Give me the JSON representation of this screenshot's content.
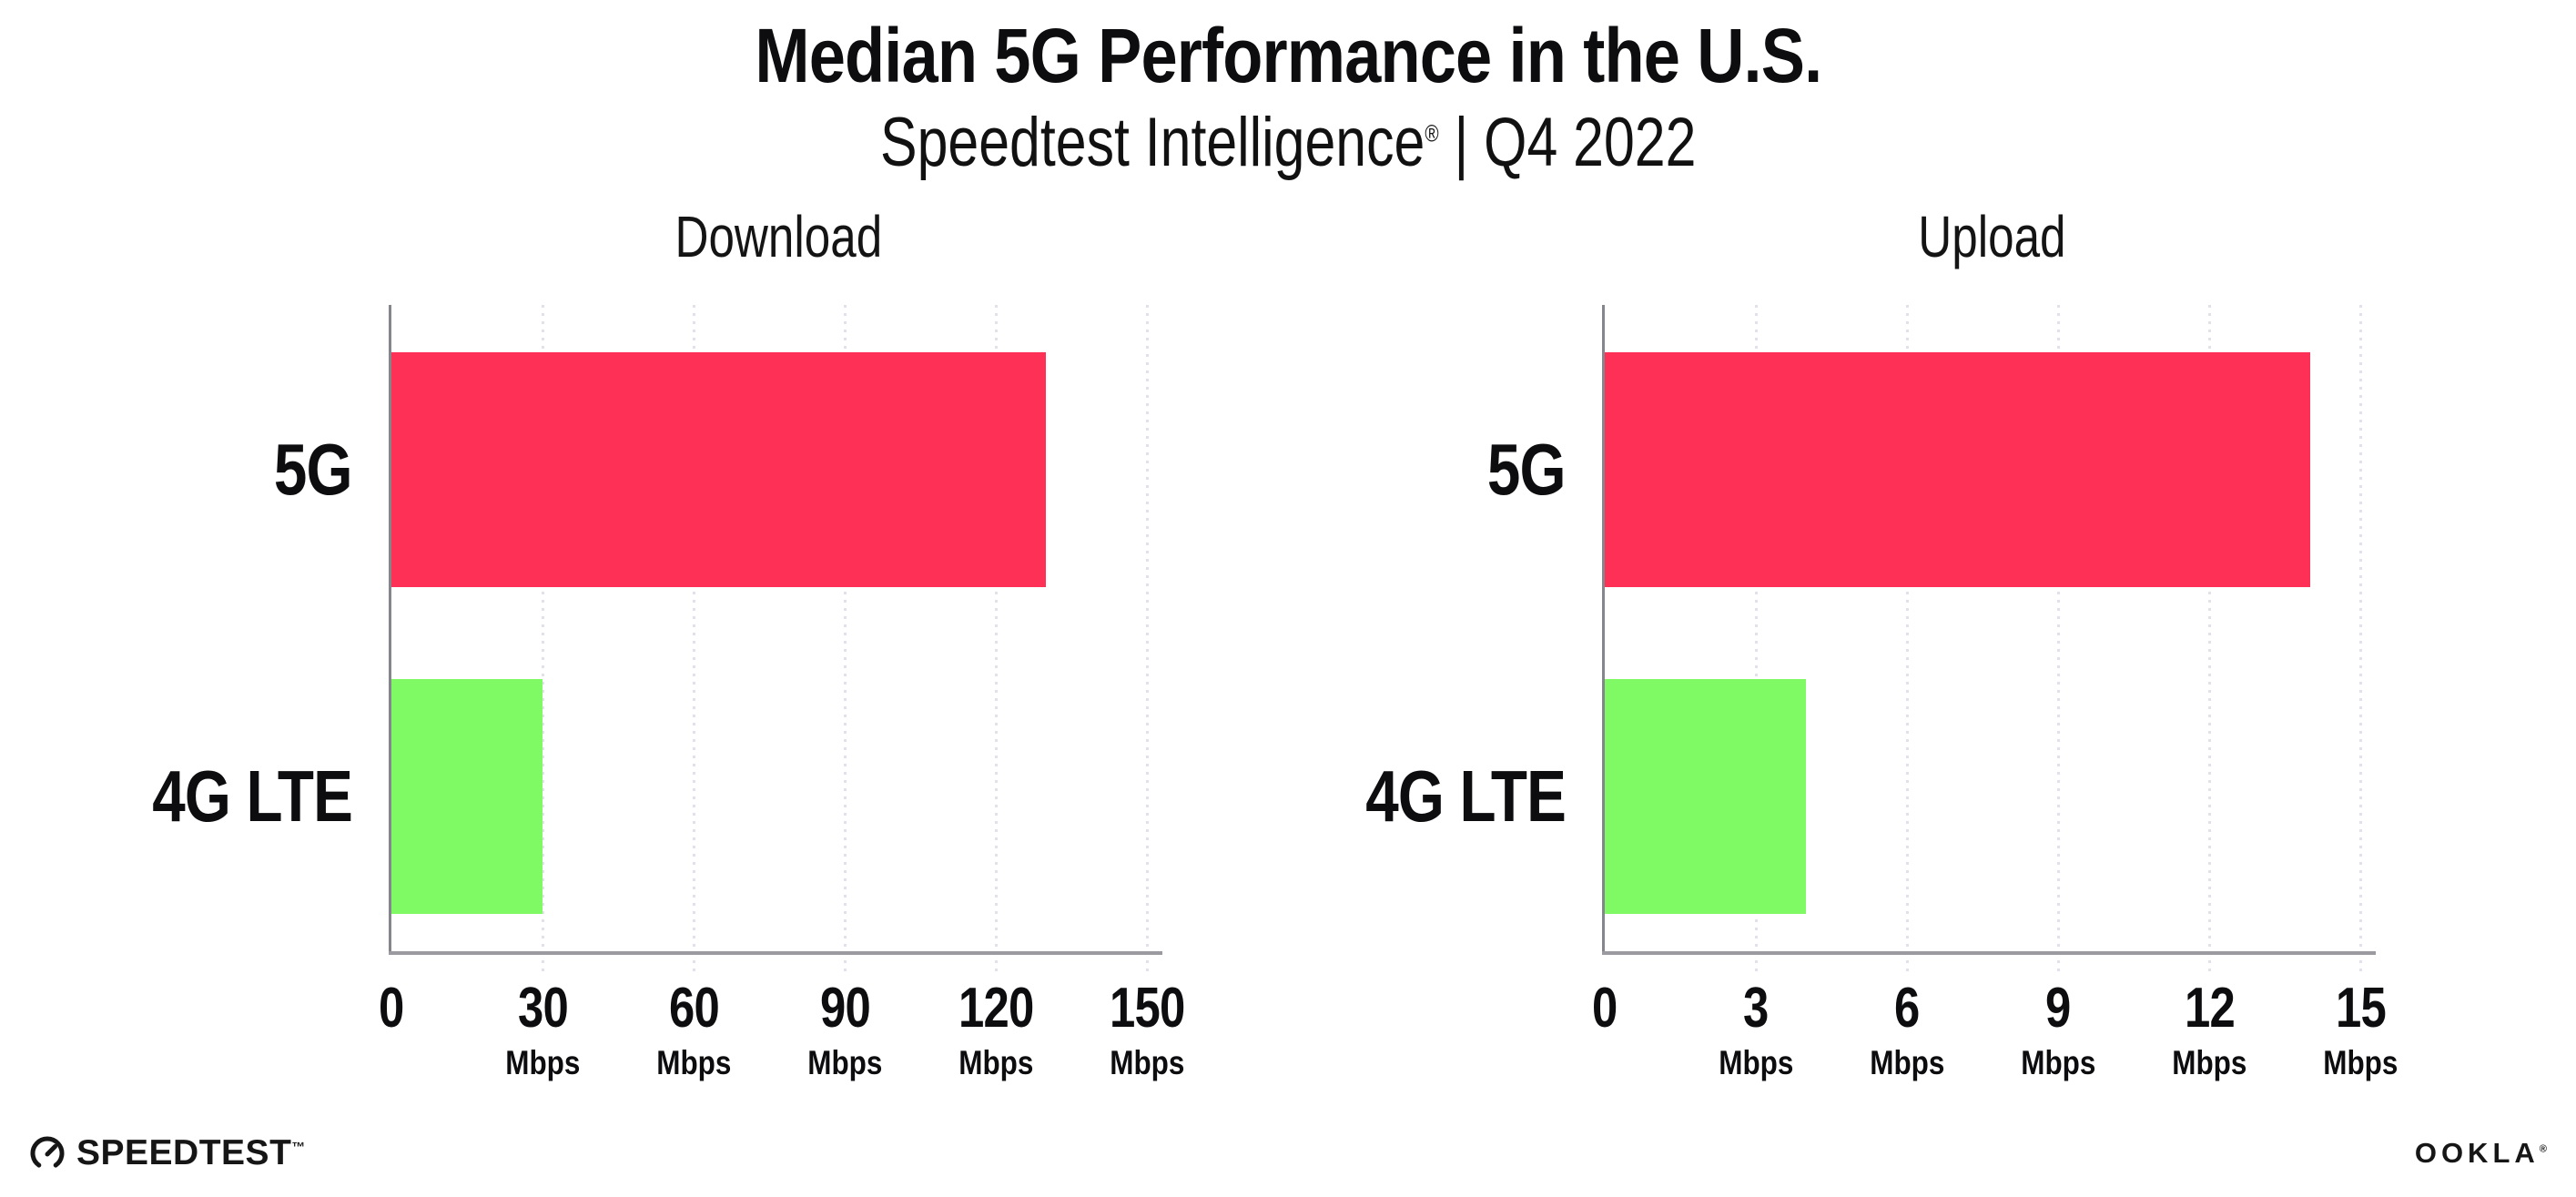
{
  "header": {
    "title": "Median 5G Performance in the U.S.",
    "subtitle": {
      "brand": "Speedtest Intelligence",
      "registered": "®",
      "separator": " | ",
      "period": "Q4 2022"
    }
  },
  "chart_data": [
    {
      "type": "bar",
      "title": "Download",
      "orientation": "horizontal",
      "categories": [
        "5G",
        "4G LTE"
      ],
      "values": [
        130,
        30
      ],
      "unit": "Mbps",
      "xticks": [
        0,
        30,
        60,
        90,
        120,
        150
      ],
      "xlim": [
        0,
        154
      ],
      "bar_colors": [
        "#FF3056",
        "#7FFA64"
      ],
      "gridlines": "dotted-vertical",
      "legend": "none"
    },
    {
      "type": "bar",
      "title": "Upload",
      "orientation": "horizontal",
      "categories": [
        "5G",
        "4G LTE"
      ],
      "values": [
        14,
        4
      ],
      "unit": "Mbps",
      "xticks": [
        0,
        3,
        6,
        9,
        12,
        15
      ],
      "xlim": [
        0,
        15.4
      ],
      "bar_colors": [
        "#FF3056",
        "#7FFA64"
      ],
      "gridlines": "dotted-vertical",
      "legend": "none"
    }
  ],
  "colors": {
    "bar_5g": "#FF3056",
    "bar_4g_lte": "#7FFA64",
    "gridline": "#E1E1EB",
    "y_axis": "#85858C",
    "x_axis": "#9A9AA0",
    "text": "#0D0D10",
    "background": "#FFFFFF"
  },
  "footer": {
    "speedtest_label": "SPEEDTEST",
    "speedtest_trademark": "™",
    "ookla_label": "OOKLA",
    "ookla_registered": "®"
  }
}
